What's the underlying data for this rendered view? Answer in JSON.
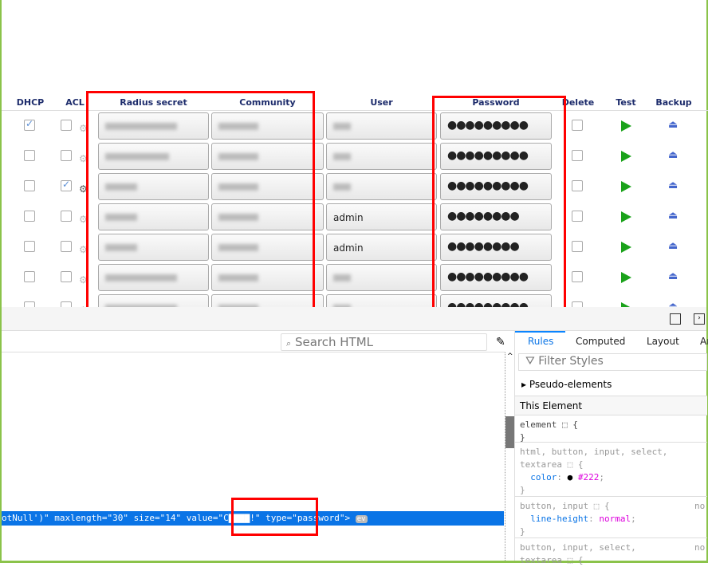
{
  "table": {
    "headers": {
      "dhcp": "DHCP",
      "acl": "ACL",
      "radius": "Radius secret",
      "community": "Community",
      "user": "User",
      "password": "Password",
      "delete": "Delete",
      "test": "Test",
      "backup": "Backup"
    },
    "rows": [
      {
        "dhcp": true,
        "acl": false,
        "user": "",
        "password": "●●●●●●●●●"
      },
      {
        "dhcp": false,
        "acl": false,
        "user": "",
        "password": "●●●●●●●●●"
      },
      {
        "dhcp": false,
        "acl": true,
        "user": "",
        "password": "●●●●●●●●●"
      },
      {
        "dhcp": false,
        "acl": false,
        "user": "admin",
        "password": "●●●●●●●●"
      },
      {
        "dhcp": false,
        "acl": false,
        "user": "admin",
        "password": "●●●●●●●●"
      },
      {
        "dhcp": false,
        "acl": false,
        "user": "",
        "password": "●●●●●●●●●"
      },
      {
        "dhcp": false,
        "acl": false,
        "user": "",
        "password": "●●●●●●●●●"
      }
    ]
  },
  "devtools": {
    "search_placeholder": "Search HTML",
    "selected_line": "otNull')\" maxlength=\"30\" size=\"14\" value=\"C▇▇▇▇!\" type=\"password\">",
    "ev_badge": "ev",
    "tabs": [
      "Rules",
      "Computed",
      "Layout",
      "An"
    ],
    "filter_placeholder": "Filter Styles",
    "pseudo": "Pseudo-elements",
    "this_element": "This Element",
    "rule1": "element",
    "rule2_sel1": "html, button, input, select,",
    "rule2_sel2": "textarea",
    "rule2_prop": "color",
    "rule2_val": "#222",
    "rule3_sel": "button, input",
    "rule3_prop": "line-height",
    "rule3_val": "normal",
    "rule4_sel1": "button, input, select,",
    "rule4_sel2": "textarea",
    "no": "no"
  }
}
